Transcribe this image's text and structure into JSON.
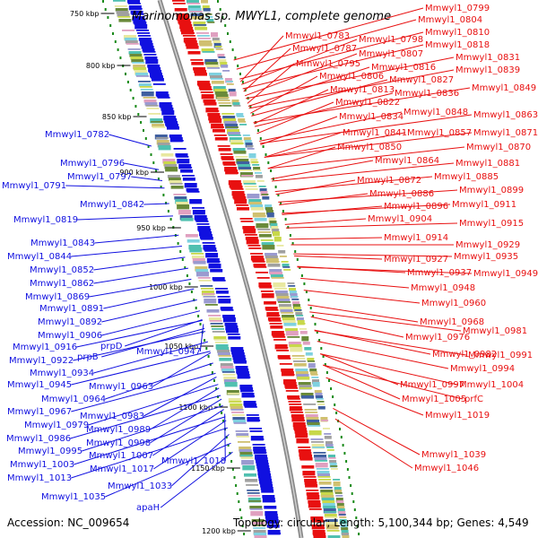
{
  "title": "Marinomonas sp. MWYL1, complete genome",
  "accession": "Accession: NC_009654",
  "topology": "Topology: circular; Length: 5,100,344 bp; Genes: 4,549",
  "colors": {
    "forward": "#e81010",
    "reverse": "#1010e0",
    "backbone": "#8a8a8a",
    "tick": "#1a8a1a"
  },
  "kbp_ticks": [
    "750 kbp",
    "800 kbp",
    "850 kbp",
    "900 kbp",
    "950 kbp",
    "1000 kbp",
    "1050 kbp",
    "1100 kbp",
    "1150 kbp",
    "1200 kbp"
  ],
  "right_labels": [
    "Mmwyl1_0799",
    "Mmwyl1_0804",
    "Mmwyl1_0783",
    "Mmwyl1_0810",
    "Mmwyl1_0798",
    "Mmwyl1_0787",
    "Mmwyl1_0818",
    "Mmwyl1_0807",
    "Mmwyl1_0831",
    "Mmwyl1_0795",
    "Mmwyl1_0816",
    "Mmwyl1_0839",
    "Mmwyl1_0806",
    "Mmwyl1_0827",
    "Mmwyl1_0813",
    "Mmwyl1_0836",
    "Mmwyl1_0849",
    "Mmwyl1_0822",
    "Mmwyl1_0834",
    "Mmwyl1_0848",
    "Mmwyl1_0863",
    "Mmwyl1_0841",
    "Mmwyl1_0857",
    "Mmwyl1_0871",
    "Mmwyl1_0850",
    "Mmwyl1_0870",
    "Mmwyl1_0864",
    "Mmwyl1_0881",
    "Mmwyl1_0885",
    "Mmwyl1_0872",
    "Mmwyl1_0899",
    "Mmwyl1_0886",
    "Mmwyl1_0896",
    "Mmwyl1_0911",
    "Mmwyl1_0904",
    "Mmwyl1_0915",
    "Mmwyl1_0914",
    "Mmwyl1_0929",
    "Mmwyl1_0935",
    "Mmwyl1_0927",
    "Mmwyl1_0937",
    "Mmwyl1_0949",
    "Mmwyl1_0948",
    "Mmwyl1_0960",
    "Mmwyl1_0968",
    "Mmwyl1_0981",
    "Mmwyl1_0976",
    "Mmwyl1_0982",
    "Mmwyl1_0991",
    "Mmwyl1_0994",
    "Mmwyl1_0997",
    "Mmwyl1_1004",
    "Mmwyl1_1005",
    "prfC",
    "Mmwyl1_1019",
    "Mmwyl1_1039",
    "Mmwyl1_1046"
  ],
  "left_labels": [
    "Mmwyl1_0782",
    "Mmwyl1_0796",
    "Mmwyl1_0797",
    "Mmwyl1_0791",
    "Mmwyl1_0842",
    "Mmwyl1_0819",
    "Mmwyl1_0843",
    "Mmwyl1_0844",
    "Mmwyl1_0852",
    "Mmwyl1_0862",
    "Mmwyl1_0869",
    "Mmwyl1_0891",
    "Mmwyl1_0892",
    "Mmwyl1_0906",
    "prpD",
    "Mmwyl1_0916",
    "prpB",
    "Mmwyl1_0947",
    "Mmwyl1_0922",
    "Mmwyl1_0934",
    "Mmwyl1_0963",
    "Mmwyl1_0945",
    "Mmwyl1_0964",
    "Mmwyl1_0967",
    "Mmwyl1_0983",
    "Mmwyl1_0979",
    "Mmwyl1_0989",
    "Mmwyl1_0986",
    "Mmwyl1_0998",
    "Mmwyl1_0995",
    "Mmwyl1_1007",
    "Mmwyl1_1018",
    "Mmwyl1_1003",
    "Mmwyl1_1017",
    "Mmwyl1_1013",
    "Mmwyl1_1033",
    "Mmwyl1_1035",
    "apaH"
  ]
}
